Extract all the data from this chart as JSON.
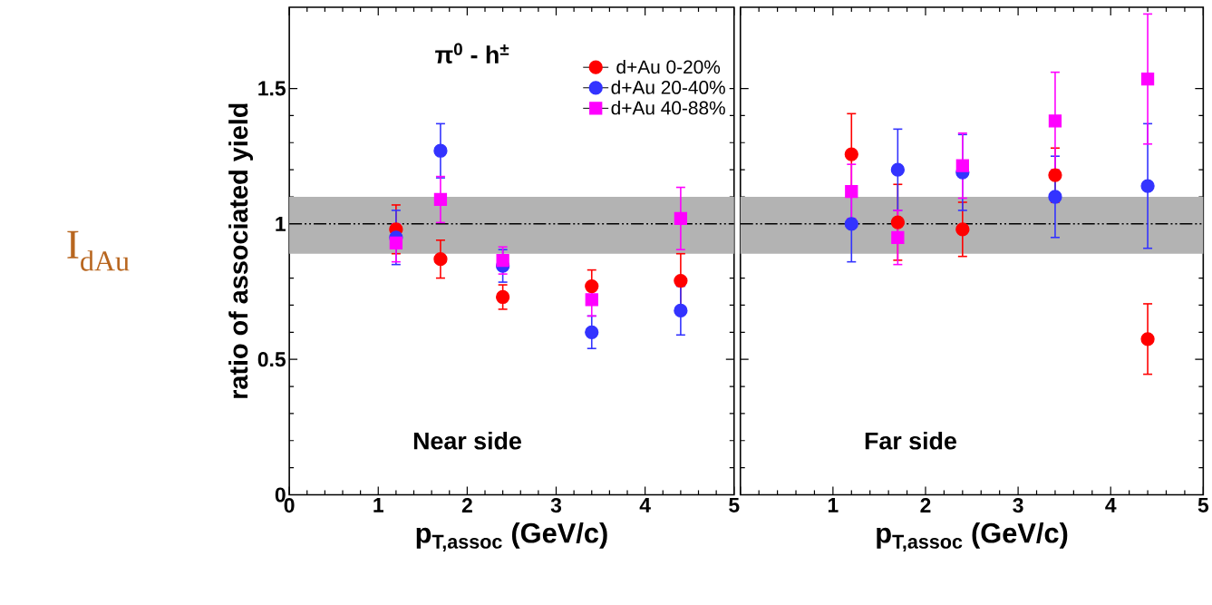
{
  "chart_data": [
    {
      "type": "scatter",
      "ylabel": "ratio of associated yield",
      "xlabel": "p$_{T,assoc}$ (GeV/c)",
      "annotations": [
        "π$^{0}$ - h$^{±}$",
        "Near side",
        "I$_{dAu}$"
      ],
      "x": [
        1.2,
        1.7,
        2.4,
        3.4,
        4.4
      ],
      "series": [
        {
          "name": "d+Au 0-20%",
          "color": "#ff0000",
          "marker": "circle",
          "values": [
            0.98,
            0.87,
            0.73,
            0.77,
            0.79
          ],
          "errors": [
            0.09,
            0.07,
            0.045,
            0.06,
            0.1
          ]
        },
        {
          "name": "d+Au 20-40%",
          "color": "#3333ff",
          "marker": "circle",
          "values": [
            0.95,
            1.27,
            0.845,
            0.6,
            0.68
          ],
          "errors": [
            0.1,
            0.1,
            0.06,
            0.06,
            0.09
          ]
        },
        {
          "name": "d+Au 40-88%",
          "color": "#ff00ff",
          "marker": "square",
          "values": [
            0.93,
            1.09,
            0.865,
            0.72,
            1.02
          ],
          "errors": [
            0.07,
            0.085,
            0.05,
            0.06,
            0.115
          ]
        }
      ],
      "xlim": [
        0,
        5
      ],
      "ylim": [
        0,
        1.8
      ],
      "xticks": [
        0,
        1,
        2,
        3,
        4,
        5
      ],
      "yticks": [
        0,
        0.5,
        1,
        1.5
      ],
      "bands": [
        {
          "axis": "y",
          "from": 0.89,
          "to": 1.1,
          "color": "#b3b3b3"
        }
      ],
      "ref_lines": [
        {
          "axis": "y",
          "value": 1,
          "line_style": "dashed",
          "color": "#000000"
        }
      ],
      "legend": "top right"
    },
    {
      "type": "scatter",
      "xlabel": "p$_{T,assoc}$ (GeV/c)",
      "annotations": [
        "Far side"
      ],
      "x": [
        1.2,
        1.7,
        2.4,
        3.4,
        4.4
      ],
      "series": [
        {
          "color": "#ff0000",
          "marker": "circle",
          "values": [
            1.257,
            1.006,
            0.98,
            1.18,
            0.575
          ],
          "errors": [
            0.15,
            0.14,
            0.1,
            0.1,
            0.13
          ]
        },
        {
          "color": "#3333ff",
          "marker": "circle",
          "values": [
            1.0,
            1.2,
            1.19,
            1.1,
            1.14
          ],
          "errors": [
            0.14,
            0.15,
            0.14,
            0.15,
            0.23
          ]
        },
        {
          "color": "#ff00ff",
          "marker": "square",
          "values": [
            1.12,
            0.95,
            1.215,
            1.38,
            1.535
          ],
          "errors": [
            0.1,
            0.1,
            0.12,
            0.18,
            0.24
          ]
        }
      ],
      "xlim": [
        0,
        5
      ],
      "ylim": [
        0,
        1.8
      ],
      "xticks": [
        {
          "value": 0,
          "label": null
        },
        1,
        2,
        3,
        4,
        5
      ],
      "yticks": [
        0,
        0.5,
        1,
        1.5
      ],
      "bands": [
        {
          "axis": "y",
          "from": 0.89,
          "to": 1.1,
          "color": "#b3b3b3"
        }
      ],
      "ref_lines": [
        {
          "axis": "y",
          "value": 1,
          "line_style": "dashed",
          "color": "#000000"
        }
      ],
      "tick_labels": "x"
    }
  ]
}
